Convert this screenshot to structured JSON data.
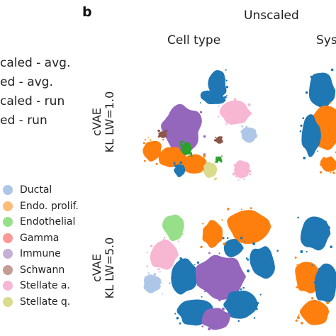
{
  "panel": {
    "label": "b",
    "header": "Unscaled"
  },
  "columns": [
    {
      "title": "Cell type"
    },
    {
      "title": "Sys"
    }
  ],
  "rows": [
    {
      "line1": "cVAE",
      "line2": "KL LW=1.0"
    },
    {
      "line1": "cVAE",
      "line2": "KL LW=5.0"
    }
  ],
  "metrics": [
    {
      "label": "caled - avg."
    },
    {
      "label": "ed - avg."
    },
    {
      "label": "caled - run"
    },
    {
      "label": "ed - run"
    }
  ],
  "legend": [
    {
      "label": "Ductal",
      "color": "#aec7e8"
    },
    {
      "label": "Endo. prolif.",
      "color": "#ffbb78"
    },
    {
      "label": "Endothelial",
      "color": "#98df8a"
    },
    {
      "label": "Gamma",
      "color": "#ff9896"
    },
    {
      "label": "Immune",
      "color": "#c5b0d5"
    },
    {
      "label": "Schwann",
      "color": "#c49c94"
    },
    {
      "label": "Stellate a.",
      "color": "#f7b6d2"
    },
    {
      "label": "Stellate q.",
      "color": "#dbdb8d"
    }
  ],
  "palette": {
    "blue": "#1f77b4",
    "orange": "#ff7f0e",
    "green": "#2ca02c",
    "purple": "#9467bd",
    "brown": "#8c564b",
    "pink": "#e377c2",
    "olive": "#bcbd22",
    "lightblue": "#aec7e8",
    "lightgreen": "#98df8a",
    "lightpink": "#f7b6d2",
    "lightolive": "#dbdb8d",
    "lightred": "#ff9896"
  }
}
